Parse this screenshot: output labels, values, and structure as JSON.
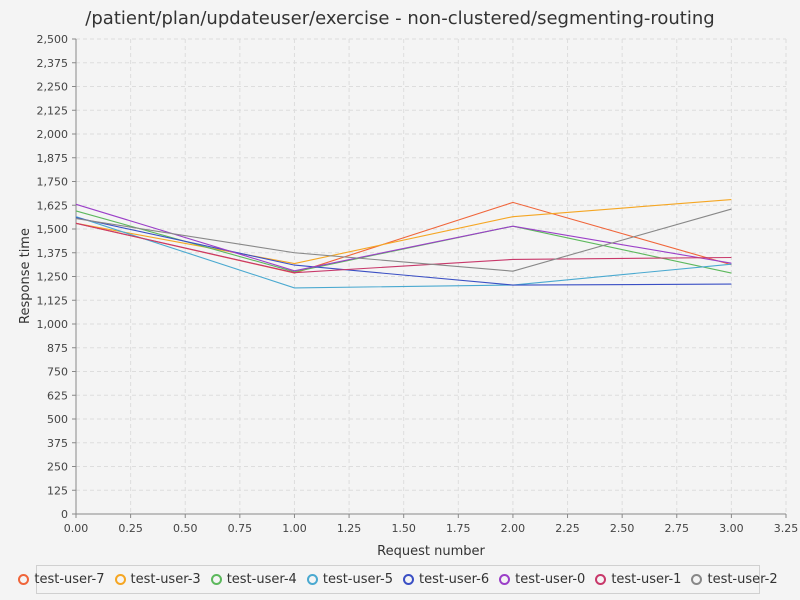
{
  "chart_data": {
    "type": "line",
    "title": "/patient/plan/updateuser/exercise - non-clustered/segmenting-routing",
    "xlabel": "Request number",
    "ylabel": "Response time",
    "xlim": [
      0,
      3.25
    ],
    "ylim": [
      0,
      2500
    ],
    "x_ticks": [
      "0.00",
      "0.25",
      "0.50",
      "0.75",
      "1.00",
      "1.25",
      "1.50",
      "1.75",
      "2.00",
      "2.25",
      "2.50",
      "2.75",
      "3.00",
      "3.25"
    ],
    "y_ticks": [
      "0",
      "125",
      "250",
      "375",
      "500",
      "625",
      "750",
      "875",
      "1,000",
      "1,125",
      "1,250",
      "1,375",
      "1,500",
      "1,625",
      "1,750",
      "1,875",
      "2,000",
      "2,125",
      "2,250",
      "2,375",
      "2,500"
    ],
    "grid": true,
    "legend_position": "bottom",
    "x": [
      0,
      1,
      2,
      3
    ],
    "series": [
      {
        "name": "test-user-7",
        "color": "#f0653a",
        "values": [
          1530,
          1268,
          1640,
          1312
        ]
      },
      {
        "name": "test-user-3",
        "color": "#f5a623",
        "values": [
          1530,
          1318,
          1565,
          1655
        ]
      },
      {
        "name": "test-user-4",
        "color": "#5cb85c",
        "values": [
          1595,
          1275,
          1515,
          1268
        ]
      },
      {
        "name": "test-user-5",
        "color": "#4aa9d0",
        "values": [
          1565,
          1190,
          1205,
          1315
        ]
      },
      {
        "name": "test-user-6",
        "color": "#3a4fc4",
        "values": [
          1560,
          1310,
          1205,
          1210
        ]
      },
      {
        "name": "test-user-0",
        "color": "#9b3fc8",
        "values": [
          1630,
          1280,
          1515,
          1320
        ]
      },
      {
        "name": "test-user-1",
        "color": "#c8386a",
        "values": [
          1530,
          1270,
          1340,
          1350
        ]
      },
      {
        "name": "test-user-2",
        "color": "#888888",
        "values": [
          1555,
          1375,
          1278,
          1605
        ]
      }
    ]
  }
}
